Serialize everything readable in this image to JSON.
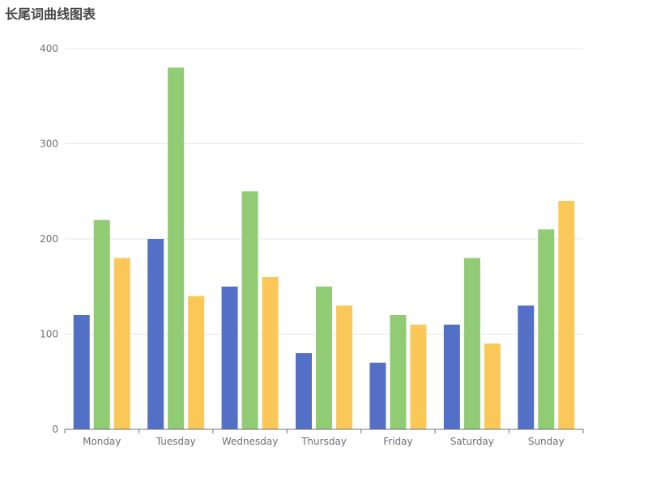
{
  "chart_data": {
    "type": "bar",
    "title": "长尾词曲线图表",
    "categories": [
      "Monday",
      "Tuesday",
      "Wednesday",
      "Thursday",
      "Friday",
      "Saturday",
      "Sunday"
    ],
    "series": [
      {
        "values": [
          120,
          200,
          150,
          80,
          70,
          110,
          130
        ],
        "color": "#5470c6"
      },
      {
        "values": [
          220,
          380,
          250,
          150,
          120,
          180,
          210
        ],
        "color": "#91cc75"
      },
      {
        "values": [
          180,
          140,
          160,
          130,
          110,
          90,
          240
        ],
        "color": "#fac858"
      }
    ],
    "ylim": [
      0,
      400
    ],
    "yticks": [
      0,
      100,
      200,
      300,
      400
    ],
    "xlabel": "",
    "ylabel": "",
    "grid": "horizontal",
    "legend": "none"
  }
}
